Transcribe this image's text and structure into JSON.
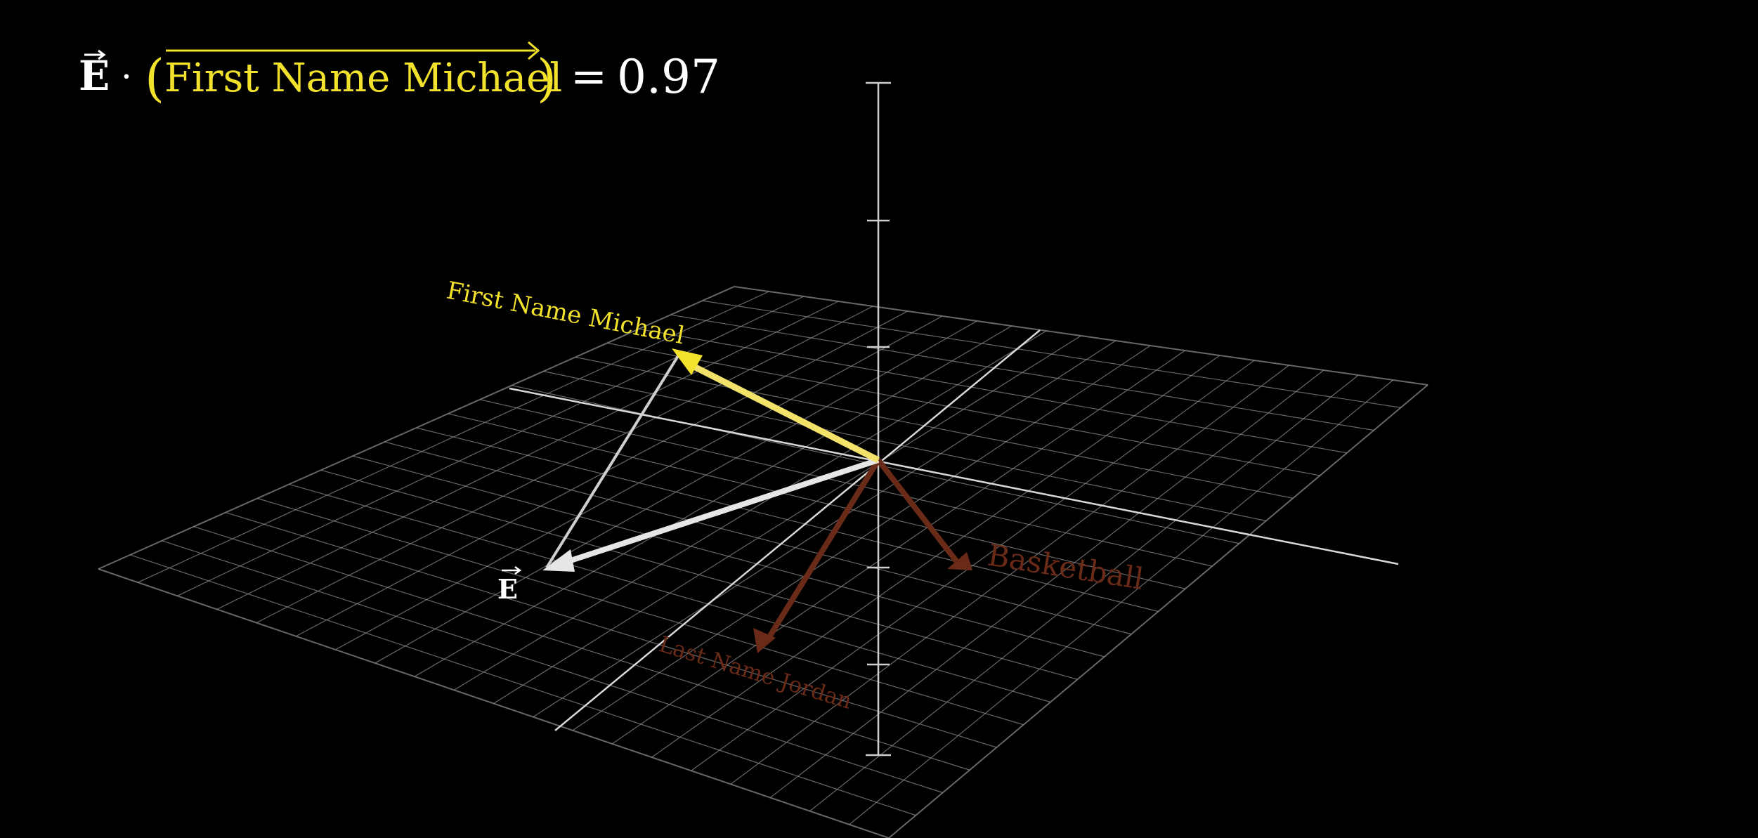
{
  "equation": {
    "left_symbol": "E",
    "operator": "·",
    "vector_label": "First Name Michael",
    "equals": "=",
    "value": "0.97"
  },
  "vectors": {
    "first_name_michael": {
      "label": "First Name Michael",
      "color": "#f2e22c"
    },
    "e": {
      "label": "E",
      "color": "#e8e8e8"
    },
    "last_name_jordan": {
      "label": "Last Name Jordan",
      "color": "#6a2a18"
    },
    "basketball": {
      "label": "Basketball",
      "color": "#6a2a18"
    }
  },
  "colors": {
    "background": "#000000",
    "grid": "#8a8a8a",
    "axis": "#d0d0d0",
    "projection_line": "#cfcfcf"
  }
}
